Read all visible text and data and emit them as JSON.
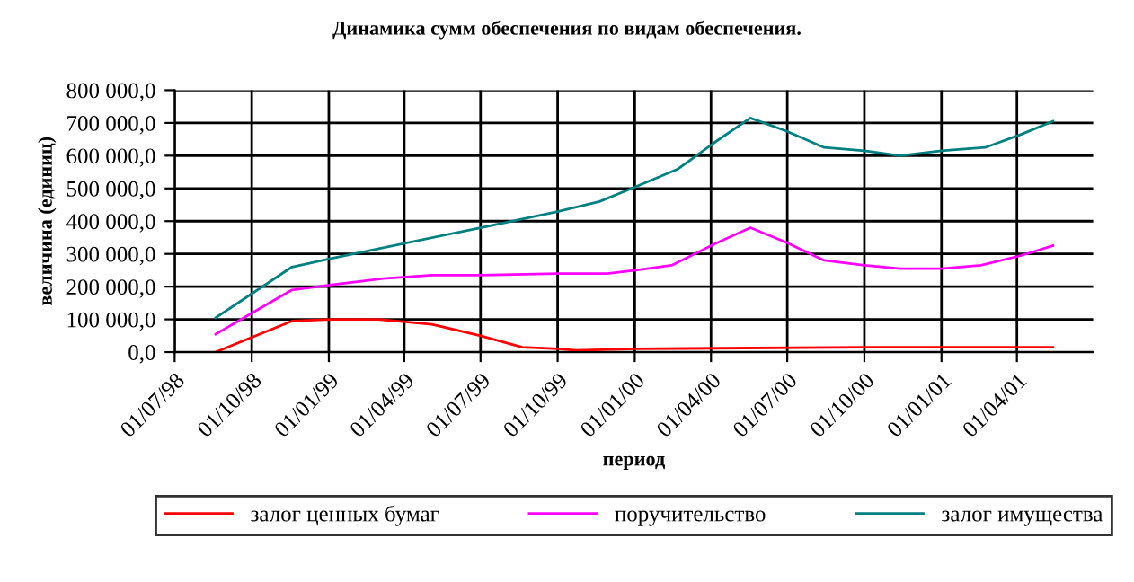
{
  "chart_data": {
    "type": "line",
    "title": "Динамика сумм обеспечения по видам обеспечения.",
    "xlabel": "период",
    "ylabel": "величина (единиц)",
    "xlim": [
      "1998-07-01",
      "2001-07-01"
    ],
    "xticks": [
      {
        "value": "1998-07-01",
        "label": "01/07/98"
      },
      {
        "value": "1998-10-01",
        "label": "01/10/98"
      },
      {
        "value": "1999-01-01",
        "label": "01/01/99"
      },
      {
        "value": "1999-04-01",
        "label": "01/04/99"
      },
      {
        "value": "1999-07-01",
        "label": "01/07/99"
      },
      {
        "value": "1999-10-01",
        "label": "01/10/99"
      },
      {
        "value": "2000-01-01",
        "label": "01/01/00"
      },
      {
        "value": "2000-04-01",
        "label": "01/04/00"
      },
      {
        "value": "2000-07-01",
        "label": "01/07/00"
      },
      {
        "value": "2000-10-01",
        "label": "01/10/00"
      },
      {
        "value": "2001-01-01",
        "label": "01/01/01"
      },
      {
        "value": "2001-04-01",
        "label": "01/04/01"
      }
    ],
    "ylim": [
      0,
      800000
    ],
    "yticks": [
      {
        "value": 0,
        "label": "0,0"
      },
      {
        "value": 100000,
        "label": "100 000,0"
      },
      {
        "value": 200000,
        "label": "200 000,0"
      },
      {
        "value": 300000,
        "label": "300 000,0"
      },
      {
        "value": 400000,
        "label": "400 000,0"
      },
      {
        "value": 500000,
        "label": "500 000,0"
      },
      {
        "value": 600000,
        "label": "600 000,0"
      },
      {
        "value": 700000,
        "label": "700 000,0"
      },
      {
        "value": 800000,
        "label": "800 000,0"
      }
    ],
    "grid": true,
    "legend": "bottom",
    "marker": "none",
    "line_style": "solid",
    "series": [
      {
        "name": "залог ценных бумаг",
        "color": "#ff0000",
        "x": [
          "1998-08-19",
          "1998-11-18",
          "1999-01-02",
          "1999-03-01",
          "1999-05-04",
          "1999-07-01",
          "1999-08-20",
          "1999-10-02",
          "1999-10-23",
          "2000-01-02",
          "2000-10-01",
          "2001-04-06",
          "2001-05-14"
        ],
        "values": [
          0,
          95000,
          100000,
          100000,
          85000,
          50000,
          15000,
          10000,
          5000,
          10000,
          15000,
          15000,
          15000
        ]
      },
      {
        "name": "поручительство",
        "color": "#ff00ff",
        "x": [
          "1998-08-19",
          "1998-11-18",
          "1999-01-02",
          "1999-03-07",
          "1999-05-04",
          "1999-07-01",
          "1999-10-02",
          "1999-11-29",
          "2000-01-02",
          "2000-02-14",
          "2000-04-05",
          "2000-05-18",
          "2000-06-30",
          "2000-08-14",
          "2000-10-01",
          "2000-11-13",
          "2001-01-01",
          "2001-02-17",
          "2001-04-06",
          "2001-05-14"
        ],
        "values": [
          55000,
          190000,
          205000,
          225000,
          235000,
          235000,
          240000,
          240000,
          250000,
          265000,
          330000,
          380000,
          335000,
          280000,
          265000,
          255000,
          255000,
          265000,
          295000,
          325000
        ]
      },
      {
        "name": "залог имущества",
        "color": "#008080",
        "x": [
          "1998-08-19",
          "1998-11-18",
          "1999-01-02",
          "1999-07-01",
          "1999-10-02",
          "1999-11-20",
          "2000-01-02",
          "2000-02-22",
          "2000-04-05",
          "2000-05-18",
          "2000-06-30",
          "2000-08-14",
          "2000-10-01",
          "2000-11-13",
          "2001-01-01",
          "2001-02-22",
          "2001-04-06",
          "2001-05-14"
        ],
        "values": [
          105000,
          260000,
          285000,
          380000,
          430000,
          460000,
          505000,
          560000,
          640000,
          715000,
          675000,
          625000,
          615000,
          600000,
          615000,
          625000,
          665000,
          705000
        ]
      }
    ]
  }
}
